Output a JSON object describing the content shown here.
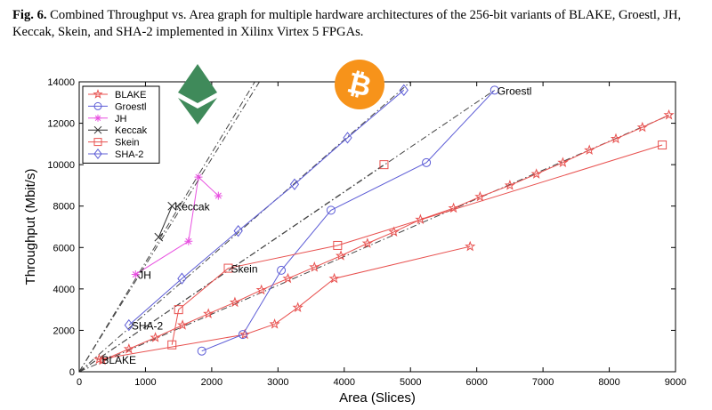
{
  "caption": {
    "label": "Fig. 6.",
    "text": "Combined Throughput vs. Area graph for multiple hardware architectures of the 256-bit variants of BLAKE, Groestl, JH, Keccak, Skein, and SHA-2 implemented in Xilinx Virtex 5 FPGAs."
  },
  "icons": {
    "ethereum": {
      "name": "ethereum-logo-icon",
      "color": "#3f8a5a"
    },
    "bitcoin": {
      "name": "bitcoin-logo-icon",
      "color": "#f7931a",
      "glyph": "₿"
    }
  },
  "chart_data": {
    "type": "scatter",
    "xlabel": "Area (Slices)",
    "ylabel": "Throughput (Mbit/s)",
    "xlim": [
      0,
      9000
    ],
    "ylim": [
      0,
      14000
    ],
    "xticks": [
      0,
      1000,
      2000,
      3000,
      4000,
      5000,
      6000,
      7000,
      8000,
      9000
    ],
    "yticks": [
      0,
      2000,
      4000,
      6000,
      8000,
      10000,
      12000,
      14000
    ],
    "grid": false,
    "legend_position": "top-left",
    "series": [
      {
        "name": "BLAKE",
        "color": "#e8514f",
        "marker": "star",
        "segments": [
          [
            [
              300,
              600
            ],
            [
              2500,
              1800
            ],
            [
              2950,
              2300
            ],
            [
              3300,
              3100
            ],
            [
              3850,
              4500
            ],
            [
              5900,
              6050
            ]
          ],
          [
            [
              350,
              550
            ],
            [
              750,
              1100
            ],
            [
              1150,
              1650
            ],
            [
              1560,
              2250
            ],
            [
              1950,
              2800
            ],
            [
              2350,
              3350
            ],
            [
              2750,
              3950
            ],
            [
              3150,
              4500
            ],
            [
              3550,
              5050
            ],
            [
              3950,
              5600
            ],
            [
              4350,
              6200
            ],
            [
              4750,
              6750
            ],
            [
              5150,
              7350
            ],
            [
              5650,
              7900
            ],
            [
              6050,
              8450
            ],
            [
              6500,
              9000
            ],
            [
              6900,
              9550
            ],
            [
              7300,
              10100
            ],
            [
              7700,
              10700
            ],
            [
              8100,
              11250
            ],
            [
              8500,
              11800
            ],
            [
              8900,
              12400
            ]
          ]
        ],
        "trend": [
          [
            0,
            0
          ],
          [
            8950,
            12450
          ]
        ]
      },
      {
        "name": "Groestl",
        "color": "#5c5cd6",
        "marker": "circle",
        "segments": [
          [
            [
              1850,
              1000
            ],
            [
              2470,
              1800
            ],
            [
              3050,
              4900
            ],
            [
              3800,
              7800
            ],
            [
              5240,
              10100
            ],
            [
              6270,
              13600
            ]
          ]
        ],
        "trend": [
          [
            0,
            0
          ],
          [
            6270,
            13600
          ]
        ]
      },
      {
        "name": "JH",
        "color": "#e84fe0",
        "marker": "asterisk",
        "segments": [
          [
            [
              850,
              4700
            ],
            [
              1650,
              6300
            ],
            [
              1800,
              9400
            ],
            [
              2100,
              8500
            ]
          ]
        ],
        "trend": null
      },
      {
        "name": "Keccak",
        "color": "#2b2b2b",
        "marker": "x",
        "segments": [
          [
            [
              1400,
              8000
            ],
            [
              1200,
              6500
            ]
          ]
        ],
        "trend": [
          [
            0,
            0
          ],
          [
            2650,
            14000
          ]
        ],
        "trend2": [
          [
            0,
            0
          ],
          [
            2720,
            14000
          ]
        ]
      },
      {
        "name": "Skein",
        "color": "#e8514f",
        "marker": "square",
        "segments": [
          [
            [
              1400,
              1300
            ],
            [
              1500,
              3000
            ],
            [
              2250,
              5000
            ],
            [
              3900,
              6100
            ],
            [
              8800,
              10950
            ]
          ]
        ],
        "extra_points": [
          [
            4600,
            10000
          ]
        ],
        "trend": [
          [
            0,
            0
          ],
          [
            4600,
            10000
          ]
        ]
      },
      {
        "name": "SHA-2",
        "color": "#5c5cd6",
        "marker": "diamond",
        "segments": [
          [
            [
              750,
              2250
            ],
            [
              1550,
              4500
            ],
            [
              2400,
              6800
            ],
            [
              3250,
              9050
            ],
            [
              4050,
              11300
            ],
            [
              4900,
              13600
            ]
          ]
        ],
        "trend": [
          [
            0,
            0
          ],
          [
            5000,
            14000
          ]
        ]
      }
    ],
    "annotations": [
      {
        "text": "BLAKE",
        "x": 300,
        "y": 600
      },
      {
        "text": "Groestl",
        "x": 6270,
        "y": 13600
      },
      {
        "text": "JH",
        "x": 850,
        "y": 4700
      },
      {
        "text": "Keccak",
        "x": 1400,
        "y": 8000
      },
      {
        "text": "Skein",
        "x": 2250,
        "y": 5000
      },
      {
        "text": "SHA-2",
        "x": 750,
        "y": 2250
      }
    ]
  }
}
